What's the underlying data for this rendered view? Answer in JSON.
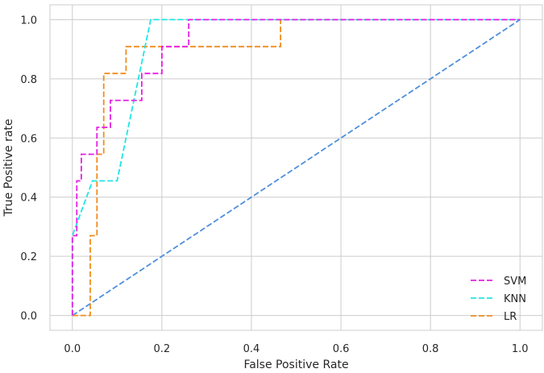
{
  "chart_data": {
    "type": "line",
    "title": "",
    "xlabel": "False Positive Rate",
    "ylabel": "True Positive rate",
    "xlim": [
      -0.05,
      1.05
    ],
    "ylim": [
      -0.05,
      1.05
    ],
    "xticks": [
      "0.0",
      "0.2",
      "0.4",
      "0.6",
      "0.8",
      "1.0"
    ],
    "yticks": [
      "0.0",
      "0.2",
      "0.4",
      "0.6",
      "0.8",
      "1.0"
    ],
    "grid": true,
    "legend_position": "bottom-right",
    "series": [
      {
        "name": "SVM",
        "color": "#e61ee6",
        "style": "dashed",
        "x": [
          0.0,
          0.0,
          0.01,
          0.01,
          0.02,
          0.02,
          0.03,
          0.03,
          0.055,
          0.055,
          0.065,
          0.065,
          0.085,
          0.085,
          0.155,
          0.155,
          0.2,
          0.2,
          0.26,
          0.26,
          1.0
        ],
        "y": [
          0.0,
          0.27,
          0.27,
          0.455,
          0.455,
          0.545,
          0.545,
          0.545,
          0.545,
          0.636,
          0.636,
          0.636,
          0.636,
          0.727,
          0.727,
          0.818,
          0.818,
          0.909,
          0.909,
          1.0,
          1.0
        ]
      },
      {
        "name": "KNN",
        "color": "#1ee6e6",
        "style": "dashed",
        "x": [
          0.0,
          0.0,
          0.045,
          0.1,
          0.175,
          1.0
        ],
        "y": [
          0.0,
          0.27,
          0.455,
          0.455,
          1.0,
          1.0
        ]
      },
      {
        "name": "LR",
        "color": "#f08c1e",
        "style": "dashed",
        "x": [
          0.0,
          0.04,
          0.04,
          0.055,
          0.055,
          0.07,
          0.07,
          0.12,
          0.12,
          0.465,
          0.465,
          1.0
        ],
        "y": [
          0.0,
          0.0,
          0.27,
          0.27,
          0.545,
          0.545,
          0.818,
          0.818,
          0.909,
          0.909,
          1.0,
          1.0
        ]
      },
      {
        "color": "#4f8fdc",
        "style": "dashed",
        "x": [
          0.0,
          1.0
        ],
        "y": [
          0.0,
          1.0
        ]
      }
    ]
  }
}
